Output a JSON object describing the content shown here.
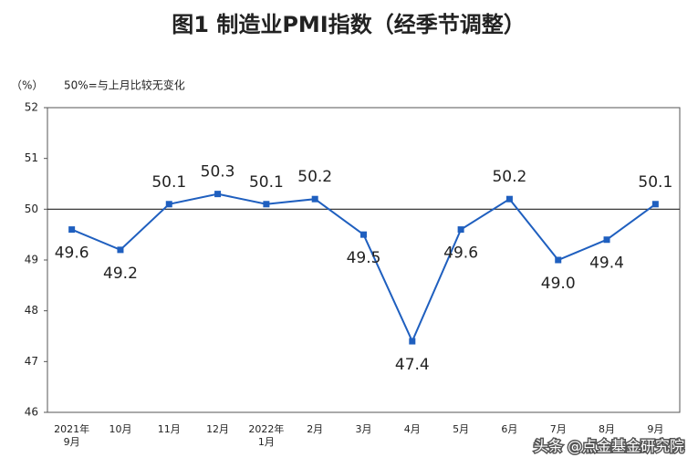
{
  "chart_data": {
    "type": "line",
    "title": "图1 制造业PMI指数（经季节调整）",
    "unit_label": "（%）",
    "note": "50%=与上月比较无变化",
    "watermark": "头条 @点金基金研究院",
    "categories": [
      "2021年\n9月",
      "10月",
      "11月",
      "12月",
      "2022年\n1月",
      "2月",
      "3月",
      "4月",
      "5月",
      "6月",
      "7月",
      "8月",
      "9月"
    ],
    "series": [
      {
        "name": "制造业PMI",
        "color": "#1f5fbf",
        "values": [
          49.6,
          49.2,
          50.1,
          50.3,
          50.1,
          50.2,
          49.5,
          47.4,
          49.6,
          50.2,
          49.0,
          49.4,
          50.1
        ],
        "value_labels": [
          "49.6",
          "49.2",
          "50.1",
          "50.3",
          "50.1",
          "50.2",
          "49.5",
          "47.4",
          "49.6",
          "50.2",
          "49.0",
          "49.4",
          "50.1"
        ]
      }
    ],
    "ylim": [
      46,
      52
    ],
    "yticks": [
      46,
      47,
      48,
      49,
      50,
      51,
      52
    ],
    "reference_line": 50
  }
}
